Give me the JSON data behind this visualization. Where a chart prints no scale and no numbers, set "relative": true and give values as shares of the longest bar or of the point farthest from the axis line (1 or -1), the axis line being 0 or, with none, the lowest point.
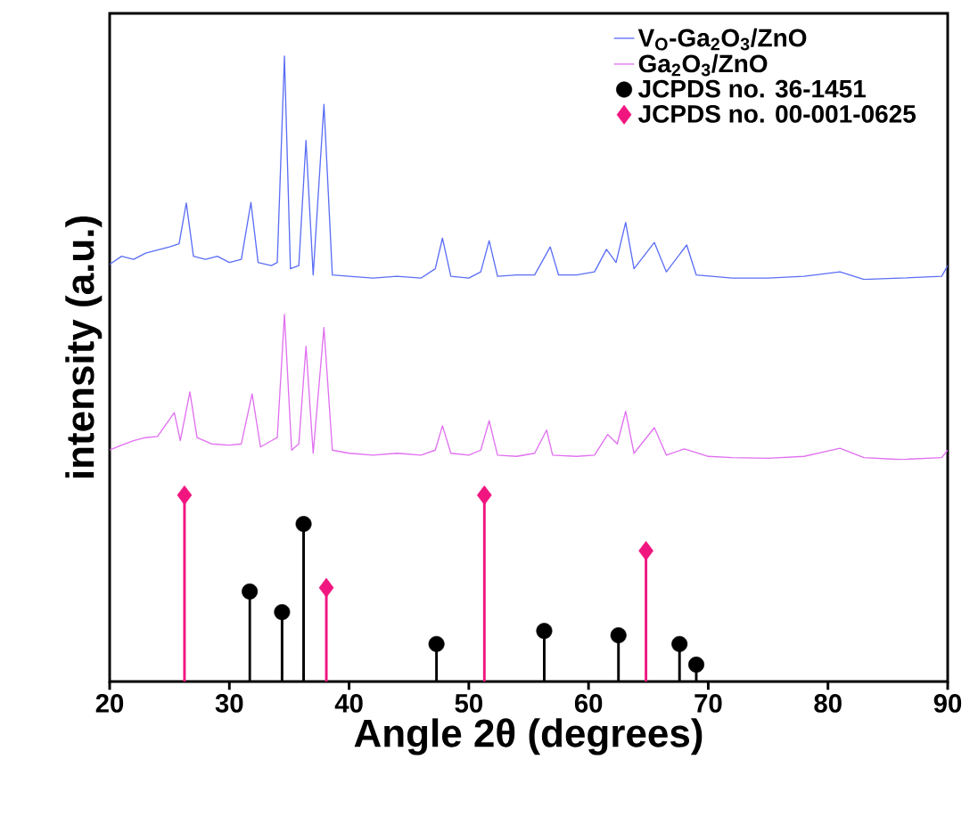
{
  "chart_data": {
    "type": "line",
    "relative": true,
    "xlabel": "Angle 2θ (degrees)",
    "ylabel": "intensity (a.u.)",
    "xlim": [
      20,
      90
    ],
    "xticks": [
      20,
      30,
      40,
      50,
      60,
      70,
      80,
      90
    ],
    "tick_labels": "x",
    "grid": false,
    "legend": "top right",
    "series": [
      {
        "name": "V$_{O}$-Ga$_{2}$O$_{3}$/ZnO",
        "color": "#5b6ef5",
        "marker": "none",
        "x": [
          20,
          21,
          22,
          23,
          24,
          25,
          25.8,
          26.4,
          27,
          28,
          29,
          30,
          31,
          31.8,
          32.4,
          33.5,
          34,
          34.6,
          35.1,
          35.8,
          36.4,
          37,
          37.9,
          38.6,
          40,
          42,
          44,
          46,
          47.2,
          47.8,
          48.5,
          50,
          51,
          51.7,
          52.4,
          54,
          55.5,
          56.8,
          57.5,
          59,
          60.5,
          61.5,
          62.3,
          63.1,
          63.8,
          65.5,
          66.5,
          68.2,
          69,
          72,
          75,
          78,
          81,
          83,
          86,
          89.5,
          90
        ],
        "values": [
          0.667,
          0.68,
          0.675,
          0.685,
          0.69,
          0.695,
          0.7,
          0.765,
          0.68,
          0.675,
          0.68,
          0.67,
          0.675,
          0.766,
          0.67,
          0.665,
          0.67,
          1.0,
          0.66,
          0.665,
          0.865,
          0.65,
          0.923,
          0.65,
          0.648,
          0.645,
          0.648,
          0.645,
          0.66,
          0.709,
          0.648,
          0.645,
          0.655,
          0.705,
          0.648,
          0.65,
          0.65,
          0.695,
          0.65,
          0.65,
          0.655,
          0.691,
          0.67,
          0.734,
          0.66,
          0.702,
          0.655,
          0.698,
          0.65,
          0.645,
          0.645,
          0.648,
          0.655,
          0.643,
          0.645,
          0.648,
          0.665
        ]
      },
      {
        "name": "Ga$_{2}$O$_{3}$/ZnO",
        "color": "#e070f0",
        "marker": "none",
        "x": [
          20,
          21,
          22,
          23,
          24,
          25.4,
          25.9,
          26.7,
          27.3,
          28.5,
          30,
          31,
          31.9,
          32.6,
          33.5,
          34,
          34.6,
          35.2,
          35.8,
          36.4,
          37,
          37.9,
          38.6,
          40,
          42,
          44,
          46,
          47.2,
          47.8,
          48.5,
          50,
          51,
          51.7,
          52.4,
          54,
          55.5,
          56.5,
          57,
          59,
          60.5,
          61.6,
          62.4,
          63.1,
          63.8,
          65.5,
          66.5,
          68,
          70,
          72,
          75,
          78,
          81,
          83,
          86,
          89.5,
          90
        ],
        "values": [
          0.37,
          0.378,
          0.385,
          0.39,
          0.392,
          0.43,
          0.385,
          0.463,
          0.39,
          0.38,
          0.378,
          0.38,
          0.46,
          0.375,
          0.385,
          0.39,
          0.587,
          0.37,
          0.38,
          0.536,
          0.365,
          0.566,
          0.37,
          0.365,
          0.362,
          0.365,
          0.362,
          0.37,
          0.409,
          0.365,
          0.362,
          0.37,
          0.417,
          0.362,
          0.36,
          0.365,
          0.402,
          0.362,
          0.36,
          0.362,
          0.395,
          0.38,
          0.432,
          0.365,
          0.406,
          0.362,
          0.372,
          0.36,
          0.358,
          0.357,
          0.36,
          0.373,
          0.358,
          0.355,
          0.358,
          0.37
        ]
      },
      {
        "name": "JCPDS no. 36-1451",
        "type": "lollipop",
        "color": "#000000",
        "marker": "circle",
        "x": [
          31.7,
          34.4,
          36.2,
          47.3,
          56.3,
          62.5,
          67.6,
          69.0
        ],
        "values": [
          0.144,
          0.111,
          0.252,
          0.06,
          0.081,
          0.074,
          0.06,
          0.027
        ]
      },
      {
        "name": "JCPDS no. 00-001-0625",
        "type": "lollipop",
        "color": "#f0157f",
        "marker": "diamond",
        "x": [
          26.25,
          38.1,
          51.3,
          64.8
        ],
        "values": [
          0.298,
          0.15,
          0.298,
          0.209
        ]
      }
    ]
  }
}
